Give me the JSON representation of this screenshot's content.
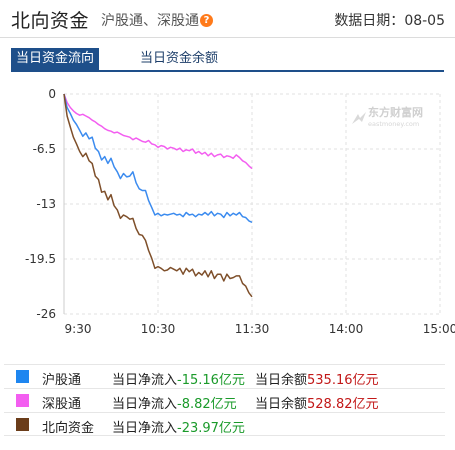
{
  "header": {
    "title": "北向资金",
    "subtitle": "沪股通、深股通",
    "date_label": "数据日期：",
    "date_value": "08-05"
  },
  "tabs": [
    {
      "label": "当日资金流向",
      "active": true
    },
    {
      "label": "当日资金余额",
      "active": false
    }
  ],
  "watermark": {
    "brand": "东方财富网",
    "domain": "eastmoney.com"
  },
  "chart_data": {
    "type": "line",
    "x_ticks": [
      "9:30",
      "10:30",
      "11:30",
      "14:00",
      "15:00"
    ],
    "y_ticks": [
      "0",
      "-6.5",
      "-13",
      "-19.5",
      "-26"
    ],
    "ylim": [
      -26,
      0
    ],
    "grid": true,
    "x_unit": "minutes since 9:30 (lunch break collapsed)",
    "series": [
      {
        "name": "沪股通",
        "color": "#3b8bef",
        "points": [
          [
            0,
            0
          ],
          [
            2,
            -1.6
          ],
          [
            4,
            -2.3
          ],
          [
            6,
            -3.1
          ],
          [
            8,
            -3.6
          ],
          [
            10,
            -4.3
          ],
          [
            12,
            -5.0
          ],
          [
            14,
            -4.6
          ],
          [
            16,
            -5.3
          ],
          [
            18,
            -5.1
          ],
          [
            20,
            -6.4
          ],
          [
            22,
            -6.8
          ],
          [
            24,
            -7.8
          ],
          [
            26,
            -7.4
          ],
          [
            28,
            -8.2
          ],
          [
            30,
            -7.6
          ],
          [
            32,
            -8.6
          ],
          [
            34,
            -9.2
          ],
          [
            36,
            -10.0
          ],
          [
            38,
            -9.4
          ],
          [
            40,
            -9.8
          ],
          [
            42,
            -9.7
          ],
          [
            44,
            -9.2
          ],
          [
            46,
            -10.5
          ],
          [
            48,
            -11.2
          ],
          [
            50,
            -11.4
          ],
          [
            52,
            -11.4
          ],
          [
            54,
            -12.6
          ],
          [
            56,
            -13.4
          ],
          [
            58,
            -14.3
          ],
          [
            60,
            -14.1
          ],
          [
            62,
            -14.4
          ],
          [
            64,
            -14.2
          ],
          [
            66,
            -14.3
          ],
          [
            68,
            -14.2
          ],
          [
            70,
            -14.1
          ],
          [
            72,
            -14.3
          ],
          [
            74,
            -14.2
          ],
          [
            76,
            -14.5
          ],
          [
            78,
            -14.0
          ],
          [
            80,
            -14.3
          ],
          [
            82,
            -14.2
          ],
          [
            84,
            -14.5
          ],
          [
            86,
            -14.2
          ],
          [
            88,
            -14.3
          ],
          [
            90,
            -14.0
          ],
          [
            92,
            -14.3
          ],
          [
            94,
            -13.9
          ],
          [
            96,
            -14.4
          ],
          [
            98,
            -14.1
          ],
          [
            100,
            -14.2
          ],
          [
            102,
            -14.6
          ],
          [
            104,
            -14.0
          ],
          [
            106,
            -14.4
          ],
          [
            108,
            -14.1
          ],
          [
            110,
            -14.3
          ],
          [
            112,
            -14.0
          ],
          [
            114,
            -14.5
          ],
          [
            116,
            -14.6
          ],
          [
            118,
            -15.0
          ],
          [
            120,
            -15.16
          ]
        ]
      },
      {
        "name": "深股通",
        "color": "#f35ef0",
        "points": [
          [
            0,
            0
          ],
          [
            2,
            -1.0
          ],
          [
            4,
            -1.6
          ],
          [
            6,
            -2.0
          ],
          [
            8,
            -2.3
          ],
          [
            10,
            -2.5
          ],
          [
            12,
            -2.4
          ],
          [
            14,
            -2.6
          ],
          [
            16,
            -2.8
          ],
          [
            18,
            -3.1
          ],
          [
            20,
            -3.3
          ],
          [
            22,
            -3.6
          ],
          [
            24,
            -3.8
          ],
          [
            26,
            -4.1
          ],
          [
            28,
            -4.3
          ],
          [
            30,
            -4.4
          ],
          [
            32,
            -4.6
          ],
          [
            34,
            -4.5
          ],
          [
            36,
            -4.7
          ],
          [
            38,
            -4.9
          ],
          [
            40,
            -5.0
          ],
          [
            42,
            -5.1
          ],
          [
            44,
            -5.4
          ],
          [
            46,
            -5.2
          ],
          [
            48,
            -5.4
          ],
          [
            50,
            -5.6
          ],
          [
            52,
            -5.7
          ],
          [
            54,
            -5.5
          ],
          [
            56,
            -5.9
          ],
          [
            58,
            -6.0
          ],
          [
            60,
            -6.3
          ],
          [
            62,
            -6.1
          ],
          [
            64,
            -6.2
          ],
          [
            66,
            -6.5
          ],
          [
            68,
            -6.3
          ],
          [
            70,
            -6.4
          ],
          [
            72,
            -6.6
          ],
          [
            74,
            -6.4
          ],
          [
            76,
            -6.8
          ],
          [
            78,
            -6.6
          ],
          [
            80,
            -6.7
          ],
          [
            82,
            -6.5
          ],
          [
            84,
            -7.0
          ],
          [
            86,
            -6.8
          ],
          [
            88,
            -7.1
          ],
          [
            90,
            -6.9
          ],
          [
            92,
            -7.3
          ],
          [
            94,
            -7.0
          ],
          [
            96,
            -7.4
          ],
          [
            98,
            -7.2
          ],
          [
            100,
            -7.1
          ],
          [
            102,
            -7.5
          ],
          [
            104,
            -7.3
          ],
          [
            106,
            -7.4
          ],
          [
            108,
            -7.6
          ],
          [
            110,
            -7.2
          ],
          [
            112,
            -7.5
          ],
          [
            114,
            -7.9
          ],
          [
            116,
            -8.1
          ],
          [
            118,
            -8.5
          ],
          [
            120,
            -8.82
          ]
        ]
      },
      {
        "name": "北向资金",
        "color": "#7e4f2a",
        "points": [
          [
            0,
            0
          ],
          [
            2,
            -2.6
          ],
          [
            4,
            -3.9
          ],
          [
            6,
            -5.1
          ],
          [
            8,
            -5.9
          ],
          [
            10,
            -6.8
          ],
          [
            12,
            -7.4
          ],
          [
            14,
            -7.0
          ],
          [
            16,
            -7.9
          ],
          [
            18,
            -8.2
          ],
          [
            20,
            -9.7
          ],
          [
            22,
            -10.1
          ],
          [
            24,
            -11.6
          ],
          [
            26,
            -11.5
          ],
          [
            28,
            -12.5
          ],
          [
            30,
            -11.9
          ],
          [
            32,
            -13.2
          ],
          [
            34,
            -13.7
          ],
          [
            36,
            -14.7
          ],
          [
            38,
            -14.3
          ],
          [
            40,
            -14.5
          ],
          [
            42,
            -14.8
          ],
          [
            44,
            -14.7
          ],
          [
            46,
            -15.9
          ],
          [
            48,
            -16.6
          ],
          [
            50,
            -16.7
          ],
          [
            52,
            -17.3
          ],
          [
            54,
            -18.5
          ],
          [
            56,
            -19.4
          ],
          [
            58,
            -20.6
          ],
          [
            60,
            -20.4
          ],
          [
            62,
            -20.6
          ],
          [
            64,
            -20.9
          ],
          [
            66,
            -20.8
          ],
          [
            68,
            -20.5
          ],
          [
            70,
            -20.7
          ],
          [
            72,
            -20.9
          ],
          [
            74,
            -20.6
          ],
          [
            76,
            -21.3
          ],
          [
            78,
            -20.6
          ],
          [
            80,
            -21.0
          ],
          [
            82,
            -20.7
          ],
          [
            84,
            -21.5
          ],
          [
            86,
            -21.1
          ],
          [
            88,
            -21.4
          ],
          [
            90,
            -20.9
          ],
          [
            92,
            -21.6
          ],
          [
            94,
            -20.9
          ],
          [
            96,
            -21.8
          ],
          [
            98,
            -21.3
          ],
          [
            100,
            -21.3
          ],
          [
            102,
            -22.1
          ],
          [
            104,
            -21.3
          ],
          [
            106,
            -21.8
          ],
          [
            108,
            -21.7
          ],
          [
            110,
            -21.5
          ],
          [
            112,
            -21.5
          ],
          [
            114,
            -22.4
          ],
          [
            116,
            -22.7
          ],
          [
            118,
            -23.5
          ],
          [
            120,
            -23.97
          ]
        ]
      }
    ]
  },
  "legend": [
    {
      "name": "沪股通",
      "color": "#1e86f0",
      "flow_label": "当日净流入",
      "flow_value": "-15.16亿元",
      "balance_label": "当日余额",
      "balance_value": "535.16亿元"
    },
    {
      "name": "深股通",
      "color": "#f35ef0",
      "flow_label": "当日净流入",
      "flow_value": "-8.82亿元",
      "balance_label": "当日余额",
      "balance_value": "528.82亿元"
    },
    {
      "name": "北向资金",
      "color": "#6b3d1a",
      "flow_label": "当日净流入",
      "flow_value": "-23.97亿元",
      "balance_label": "",
      "balance_value": ""
    }
  ]
}
